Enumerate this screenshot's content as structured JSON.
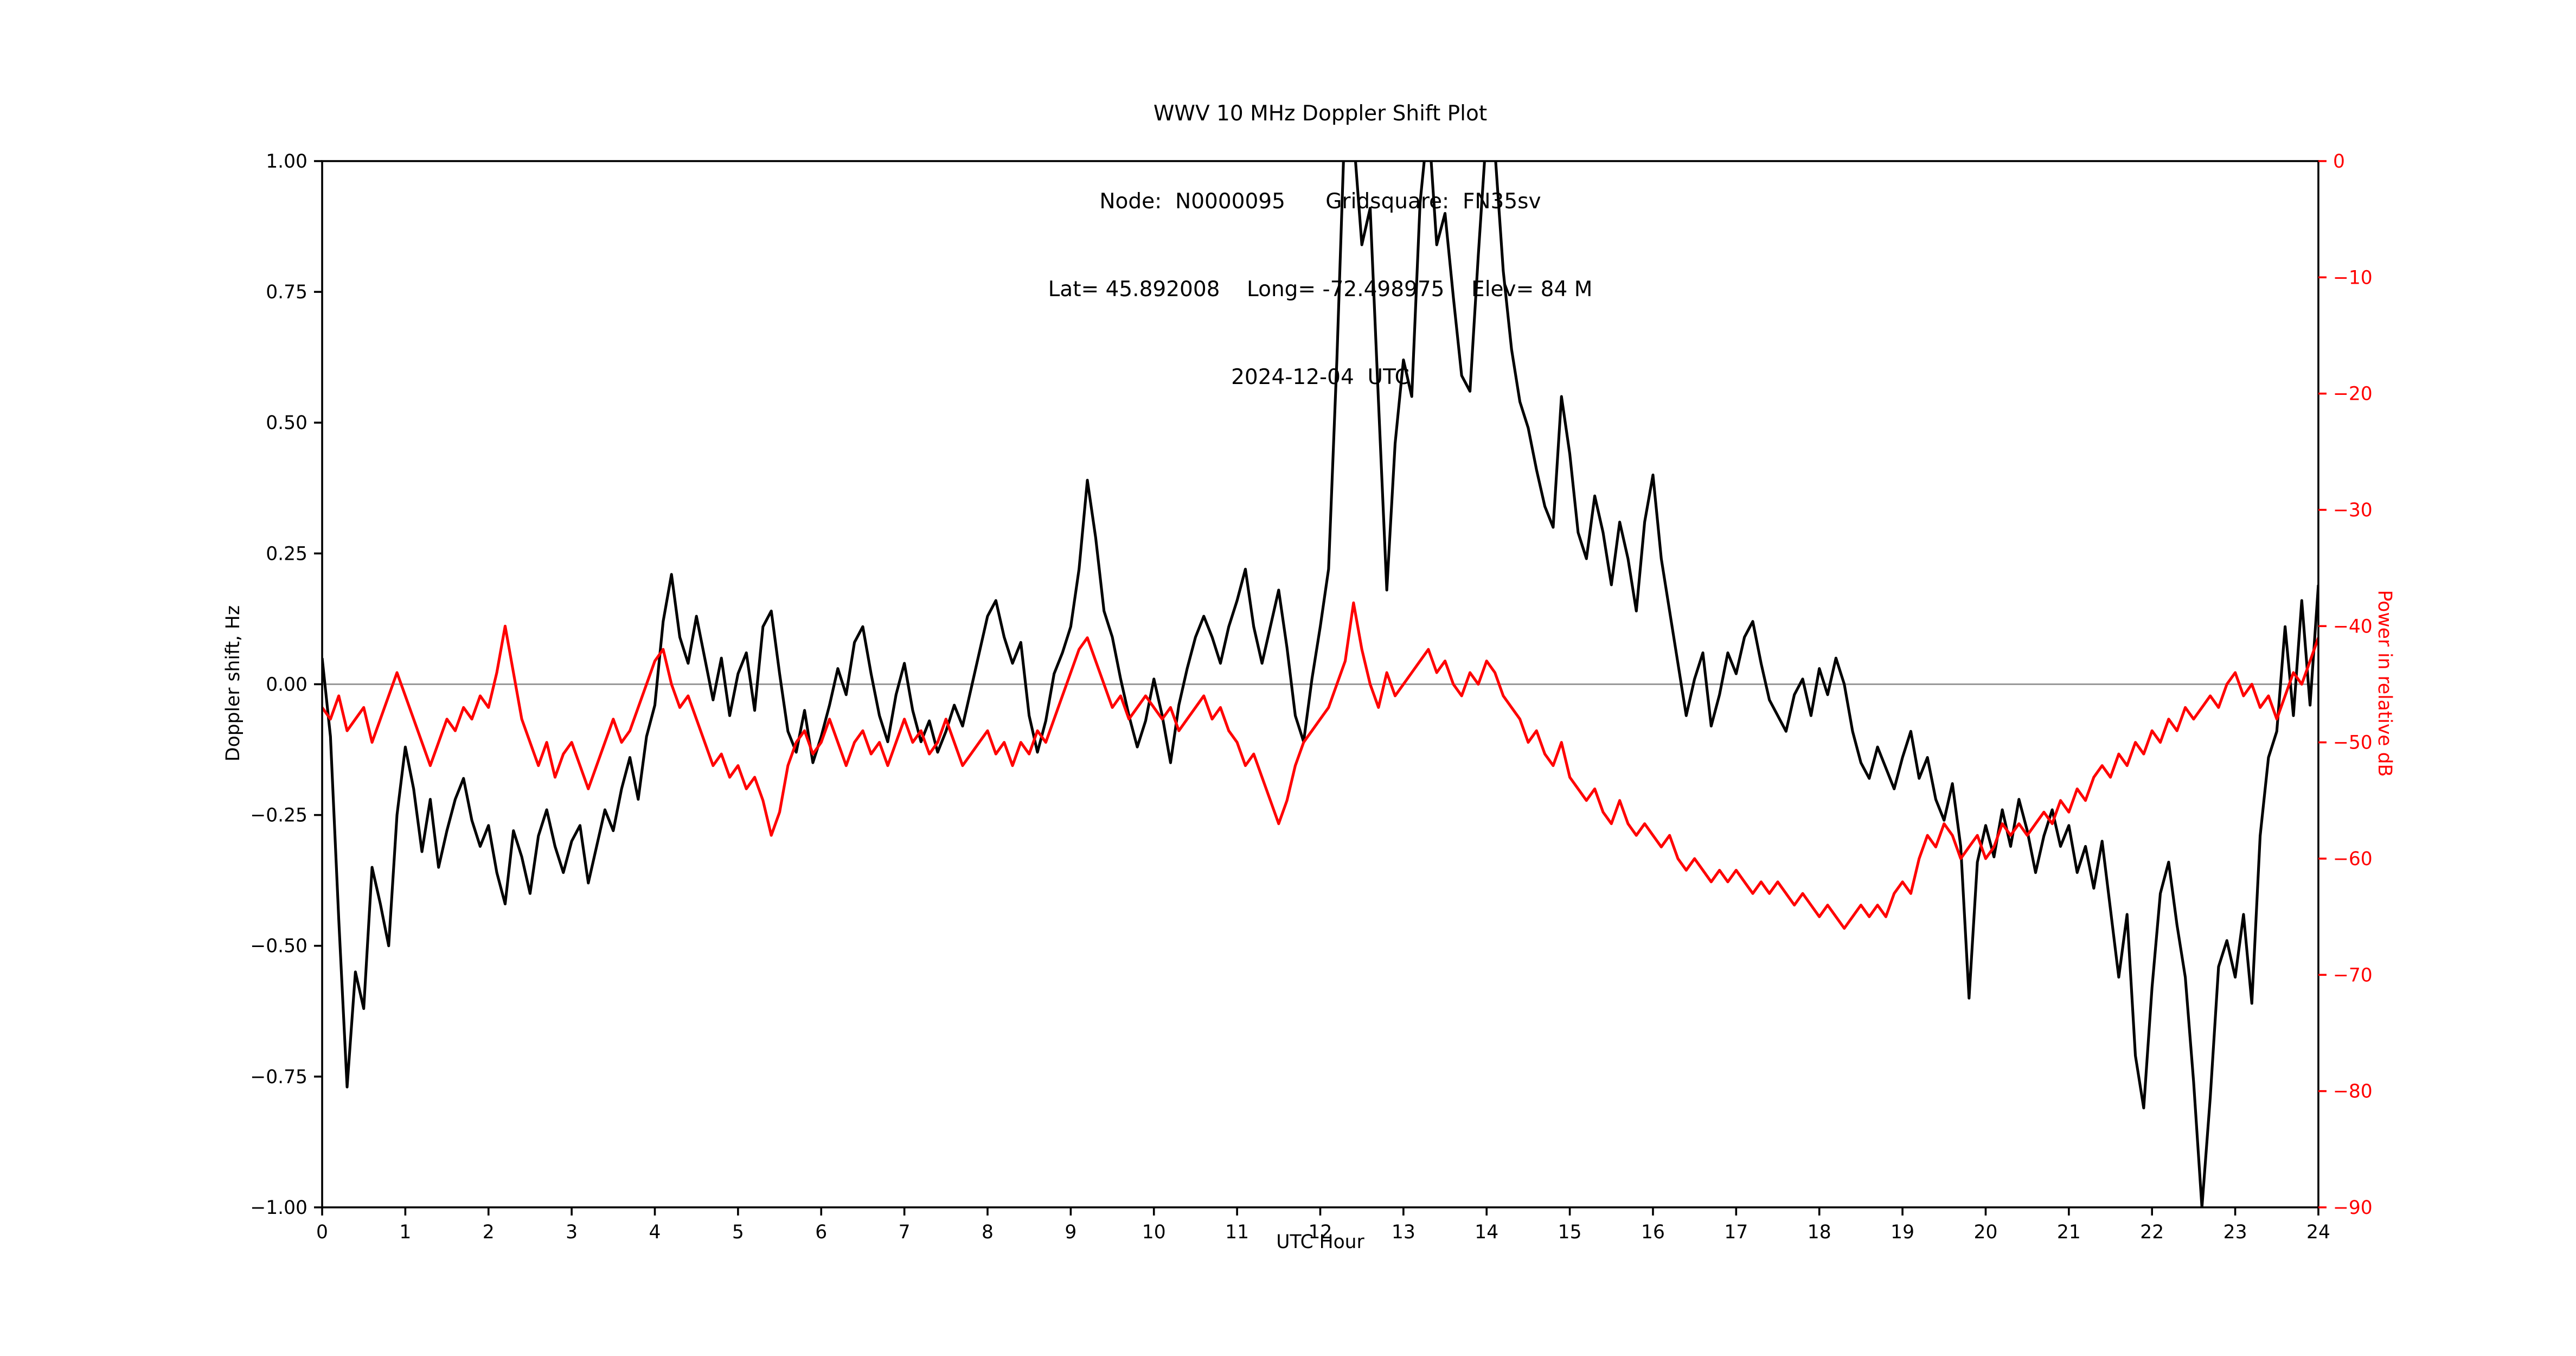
{
  "figure": {
    "title_line1": "WWV 10 MHz Doppler Shift Plot",
    "title_line2": "Node:  N0000095      Gridsquare:  FN35sv",
    "title_line3": "Lat= 45.892008    Long= -72.498975    Elev= 84 M",
    "title_line4": "2024-12-04  UTC"
  },
  "axes": {
    "x_label": "UTC Hour",
    "left_label": "Doppler shift, Hz",
    "right_label": "Power in relative dB",
    "x_ticks": [
      "0",
      "1",
      "2",
      "3",
      "4",
      "5",
      "6",
      "7",
      "8",
      "9",
      "10",
      "11",
      "12",
      "13",
      "14",
      "15",
      "16",
      "17",
      "18",
      "19",
      "20",
      "21",
      "22",
      "23",
      "24"
    ],
    "left_ticks": [
      "1.00",
      "0.75",
      "0.50",
      "0.25",
      "0.00",
      "−0.25",
      "−0.50",
      "−0.75",
      "−1.00"
    ],
    "right_ticks": [
      "0",
      "−10",
      "−20",
      "−30",
      "−40",
      "−50",
      "−60",
      "−70",
      "−80",
      "−90"
    ]
  },
  "colors": {
    "doppler": "#000000",
    "power": "#ff0000",
    "zero_line": "#999999",
    "frame": "#000000"
  },
  "chart_data": {
    "type": "line",
    "title": "WWV 10 MHz Doppler Shift Plot",
    "subtitle": "Node: N0000095  Gridsquare: FN35sv  Lat= 45.892008  Long= -72.498975  Elev= 84 M  2024-12-04 UTC",
    "xlabel": "UTC Hour",
    "xlim": [
      0,
      24
    ],
    "grid": false,
    "legend": "none",
    "left_axis": {
      "label": "Doppler shift, Hz",
      "ylim": [
        -1.0,
        1.0
      ]
    },
    "right_axis": {
      "label": "Power in relative dB",
      "ylim": [
        -90,
        0
      ]
    },
    "x": [
      0.0,
      0.1,
      0.2,
      0.3,
      0.4,
      0.5,
      0.6,
      0.7,
      0.8,
      0.9,
      1.0,
      1.1,
      1.2,
      1.3,
      1.4,
      1.5,
      1.6,
      1.7,
      1.8,
      1.9,
      2.0,
      2.1,
      2.2,
      2.3,
      2.4,
      2.5,
      2.6,
      2.7,
      2.8,
      2.9,
      3.0,
      3.1,
      3.2,
      3.3,
      3.4,
      3.5,
      3.6,
      3.7,
      3.8,
      3.9,
      4.0,
      4.1,
      4.2,
      4.3,
      4.4,
      4.5,
      4.6,
      4.7,
      4.8,
      4.9,
      5.0,
      5.1,
      5.2,
      5.3,
      5.4,
      5.5,
      5.6,
      5.7,
      5.8,
      5.9,
      6.0,
      6.1,
      6.2,
      6.3,
      6.4,
      6.5,
      6.6,
      6.7,
      6.8,
      6.9,
      7.0,
      7.1,
      7.2,
      7.3,
      7.4,
      7.5,
      7.6,
      7.7,
      7.8,
      7.9,
      8.0,
      8.1,
      8.2,
      8.3,
      8.4,
      8.5,
      8.6,
      8.7,
      8.8,
      8.9,
      9.0,
      9.1,
      9.2,
      9.3,
      9.4,
      9.5,
      9.6,
      9.7,
      9.8,
      9.9,
      10.0,
      10.1,
      10.2,
      10.3,
      10.4,
      10.5,
      10.6,
      10.7,
      10.8,
      10.9,
      11.0,
      11.1,
      11.2,
      11.3,
      11.4,
      11.5,
      11.6,
      11.7,
      11.8,
      11.9,
      12.0,
      12.1,
      12.2,
      12.3,
      12.4,
      12.5,
      12.6,
      12.7,
      12.8,
      12.9,
      13.0,
      13.1,
      13.2,
      13.3,
      13.4,
      13.5,
      13.6,
      13.7,
      13.8,
      13.9,
      14.0,
      14.1,
      14.2,
      14.3,
      14.4,
      14.5,
      14.6,
      14.7,
      14.8,
      14.9,
      15.0,
      15.1,
      15.2,
      15.3,
      15.4,
      15.5,
      15.6,
      15.7,
      15.8,
      15.9,
      16.0,
      16.1,
      16.2,
      16.3,
      16.4,
      16.5,
      16.6,
      16.7,
      16.8,
      16.9,
      17.0,
      17.1,
      17.2,
      17.3,
      17.4,
      17.5,
      17.6,
      17.7,
      17.8,
      17.9,
      18.0,
      18.1,
      18.2,
      18.3,
      18.4,
      18.5,
      18.6,
      18.7,
      18.8,
      18.9,
      19.0,
      19.1,
      19.2,
      19.3,
      19.4,
      19.5,
      19.6,
      19.7,
      19.8,
      19.9,
      20.0,
      20.1,
      20.2,
      20.3,
      20.4,
      20.5,
      20.6,
      20.7,
      20.8,
      20.9,
      21.0,
      21.1,
      21.2,
      21.3,
      21.4,
      21.5,
      21.6,
      21.7,
      21.8,
      21.9,
      22.0,
      22.1,
      22.2,
      22.3,
      22.4,
      22.5,
      22.6,
      22.7,
      22.8,
      22.9,
      23.0,
      23.1,
      23.2,
      23.3,
      23.4,
      23.5,
      23.6,
      23.7,
      23.8,
      23.9,
      24.0
    ],
    "series": [
      {
        "name": "Doppler shift",
        "axis": "left",
        "unit": "Hz",
        "color": "#000000",
        "values": [
          0.05,
          -0.1,
          -0.45,
          -0.77,
          -0.55,
          -0.62,
          -0.35,
          -0.42,
          -0.5,
          -0.25,
          -0.12,
          -0.2,
          -0.32,
          -0.22,
          -0.35,
          -0.28,
          -0.22,
          -0.18,
          -0.26,
          -0.31,
          -0.27,
          -0.36,
          -0.42,
          -0.28,
          -0.33,
          -0.4,
          -0.29,
          -0.24,
          -0.31,
          -0.36,
          -0.3,
          -0.27,
          -0.38,
          -0.31,
          -0.24,
          -0.28,
          -0.2,
          -0.14,
          -0.22,
          -0.1,
          -0.04,
          0.12,
          0.21,
          0.09,
          0.04,
          0.13,
          0.05,
          -0.03,
          0.05,
          -0.06,
          0.02,
          0.06,
          -0.05,
          0.11,
          0.14,
          0.02,
          -0.09,
          -0.13,
          -0.05,
          -0.15,
          -0.1,
          -0.04,
          0.03,
          -0.02,
          0.08,
          0.11,
          0.02,
          -0.06,
          -0.11,
          -0.02,
          0.04,
          -0.05,
          -0.11,
          -0.07,
          -0.13,
          -0.09,
          -0.04,
          -0.08,
          -0.01,
          0.06,
          0.13,
          0.16,
          0.09,
          0.04,
          0.08,
          -0.06,
          -0.13,
          -0.07,
          0.02,
          0.06,
          0.11,
          0.22,
          0.39,
          0.28,
          0.14,
          0.09,
          0.01,
          -0.06,
          -0.12,
          -0.07,
          0.01,
          -0.06,
          -0.15,
          -0.04,
          0.03,
          0.09,
          0.13,
          0.09,
          0.04,
          0.11,
          0.16,
          0.22,
          0.11,
          0.04,
          0.11,
          0.18,
          0.07,
          -0.06,
          -0.11,
          0.01,
          0.11,
          0.22,
          0.62,
          1.1,
          1.05,
          0.84,
          0.91,
          0.54,
          0.18,
          0.46,
          0.62,
          0.55,
          0.92,
          1.08,
          0.84,
          0.9,
          0.74,
          0.59,
          0.56,
          0.82,
          1.06,
          1.02,
          0.79,
          0.64,
          0.54,
          0.49,
          0.41,
          0.34,
          0.3,
          0.55,
          0.44,
          0.29,
          0.24,
          0.36,
          0.29,
          0.19,
          0.31,
          0.24,
          0.14,
          0.31,
          0.4,
          0.24,
          0.14,
          0.04,
          -0.06,
          0.01,
          0.06,
          -0.08,
          -0.02,
          0.06,
          0.02,
          0.09,
          0.12,
          0.04,
          -0.03,
          -0.06,
          -0.09,
          -0.02,
          0.01,
          -0.06,
          0.03,
          -0.02,
          0.05,
          0.0,
          -0.09,
          -0.15,
          -0.18,
          -0.12,
          -0.16,
          -0.2,
          -0.14,
          -0.09,
          -0.18,
          -0.14,
          -0.22,
          -0.26,
          -0.19,
          -0.31,
          -0.6,
          -0.34,
          -0.27,
          -0.33,
          -0.24,
          -0.31,
          -0.22,
          -0.28,
          -0.36,
          -0.29,
          -0.24,
          -0.31,
          -0.27,
          -0.36,
          -0.31,
          -0.39,
          -0.3,
          -0.43,
          -0.56,
          -0.44,
          -0.71,
          -0.81,
          -0.58,
          -0.4,
          -0.34,
          -0.46,
          -0.56,
          -0.76,
          -1.0,
          -0.79,
          -0.54,
          -0.49,
          -0.56,
          -0.44,
          -0.61,
          -0.29,
          -0.14,
          -0.09,
          0.11,
          -0.06,
          0.16,
          -0.04,
          0.19
        ]
      },
      {
        "name": "Relative power",
        "axis": "right",
        "unit": "dB",
        "color": "#ff0000",
        "values": [
          -47,
          -48,
          -46,
          -49,
          -48,
          -47,
          -50,
          -48,
          -46,
          -44,
          -46,
          -48,
          -50,
          -52,
          -50,
          -48,
          -49,
          -47,
          -48,
          -46,
          -47,
          -44,
          -40,
          -44,
          -48,
          -50,
          -52,
          -50,
          -53,
          -51,
          -50,
          -52,
          -54,
          -52,
          -50,
          -48,
          -50,
          -49,
          -47,
          -45,
          -43,
          -42,
          -45,
          -47,
          -46,
          -48,
          -50,
          -52,
          -51,
          -53,
          -52,
          -54,
          -53,
          -55,
          -58,
          -56,
          -52,
          -50,
          -49,
          -51,
          -50,
          -48,
          -50,
          -52,
          -50,
          -49,
          -51,
          -50,
          -52,
          -50,
          -48,
          -50,
          -49,
          -51,
          -50,
          -48,
          -50,
          -52,
          -51,
          -50,
          -49,
          -51,
          -50,
          -52,
          -50,
          -51,
          -49,
          -50,
          -48,
          -46,
          -44,
          -42,
          -41,
          -43,
          -45,
          -47,
          -46,
          -48,
          -47,
          -46,
          -47,
          -48,
          -47,
          -49,
          -48,
          -47,
          -46,
          -48,
          -47,
          -49,
          -50,
          -52,
          -51,
          -53,
          -55,
          -57,
          -55,
          -52,
          -50,
          -49,
          -48,
          -47,
          -45,
          -43,
          -38,
          -42,
          -45,
          -47,
          -44,
          -46,
          -45,
          -44,
          -43,
          -42,
          -44,
          -43,
          -45,
          -46,
          -44,
          -45,
          -43,
          -44,
          -46,
          -47,
          -48,
          -50,
          -49,
          -51,
          -52,
          -50,
          -53,
          -54,
          -55,
          -54,
          -56,
          -57,
          -55,
          -57,
          -58,
          -57,
          -58,
          -59,
          -58,
          -60,
          -61,
          -60,
          -61,
          -62,
          -61,
          -62,
          -61,
          -62,
          -63,
          -62,
          -63,
          -62,
          -63,
          -64,
          -63,
          -64,
          -65,
          -64,
          -65,
          -66,
          -65,
          -64,
          -65,
          -64,
          -65,
          -63,
          -62,
          -63,
          -60,
          -58,
          -59,
          -57,
          -58,
          -60,
          -59,
          -58,
          -60,
          -59,
          -57,
          -58,
          -57,
          -58,
          -57,
          -56,
          -57,
          -55,
          -56,
          -54,
          -55,
          -53,
          -52,
          -53,
          -51,
          -52,
          -50,
          -51,
          -49,
          -50,
          -48,
          -49,
          -47,
          -48,
          -47,
          -46,
          -47,
          -45,
          -44,
          -46,
          -45,
          -47,
          -46,
          -48,
          -46,
          -44,
          -45,
          -43,
          -41
        ]
      }
    ]
  }
}
